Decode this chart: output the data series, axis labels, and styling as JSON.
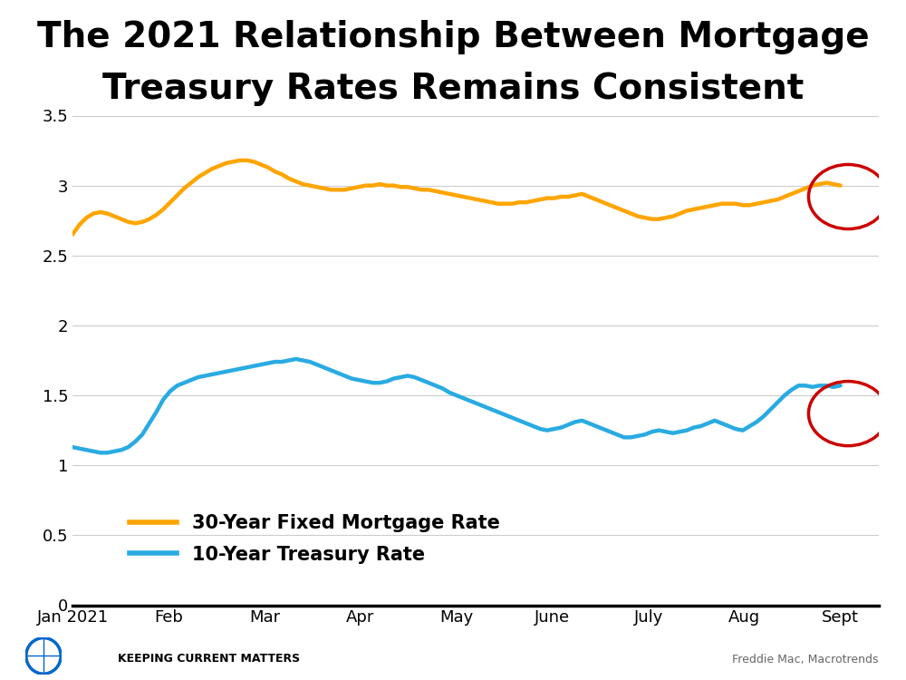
{
  "title_line1": "The 2021 Relationship Between Mortgage",
  "title_line2": "Treasury Rates Remains Consistent",
  "title_fontsize": 28,
  "background_color": "#ffffff",
  "mortgage_color": "#FFA500",
  "treasury_color": "#29ABE2",
  "circle_color": "#CC0000",
  "ylim": [
    0,
    3.5
  ],
  "yticks": [
    0,
    0.5,
    1.0,
    1.5,
    2.0,
    2.5,
    3.0,
    3.5
  ],
  "xtick_labels": [
    "Jan 2021",
    "Feb",
    "Mar",
    "Apr",
    "May",
    "June",
    "July",
    "Aug",
    "Sept",
    ""
  ],
  "legend_mortgage": "30-Year Fixed Mortgage Rate",
  "legend_treasury": "10-Year Treasury Rate",
  "source_left": "KEEPING CURRENT MATTERS",
  "source_right": "Freddie Mac, Macrotrends",
  "mortgage_y": [
    2.65,
    2.72,
    2.77,
    2.8,
    2.81,
    2.8,
    2.78,
    2.76,
    2.74,
    2.73,
    2.74,
    2.76,
    2.79,
    2.83,
    2.88,
    2.93,
    2.98,
    3.02,
    3.06,
    3.09,
    3.12,
    3.14,
    3.16,
    3.17,
    3.18,
    3.18,
    3.17,
    3.15,
    3.13,
    3.1,
    3.08,
    3.05,
    3.03,
    3.01,
    3.0,
    2.99,
    2.98,
    2.97,
    2.97,
    2.97,
    2.98,
    2.99,
    3.0,
    3.0,
    3.01,
    3.0,
    3.0,
    2.99,
    2.99,
    2.98,
    2.97,
    2.97,
    2.96,
    2.95,
    2.94,
    2.93,
    2.92,
    2.91,
    2.9,
    2.89,
    2.88,
    2.87,
    2.87,
    2.87,
    2.88,
    2.88,
    2.89,
    2.9,
    2.91,
    2.91,
    2.92,
    2.92,
    2.93,
    2.94,
    2.92,
    2.9,
    2.88,
    2.86,
    2.84,
    2.82,
    2.8,
    2.78,
    2.77,
    2.76,
    2.76,
    2.77,
    2.78,
    2.8,
    2.82,
    2.83,
    2.84,
    2.85,
    2.86,
    2.87,
    2.87,
    2.87,
    2.86,
    2.86,
    2.87,
    2.88,
    2.89,
    2.9,
    2.92,
    2.94,
    2.96,
    2.98,
    3.0,
    3.01,
    3.02,
    3.01,
    3.0
  ],
  "treasury_y": [
    1.13,
    1.12,
    1.11,
    1.1,
    1.09,
    1.09,
    1.1,
    1.11,
    1.13,
    1.17,
    1.22,
    1.3,
    1.38,
    1.47,
    1.53,
    1.57,
    1.59,
    1.61,
    1.63,
    1.64,
    1.65,
    1.66,
    1.67,
    1.68,
    1.69,
    1.7,
    1.71,
    1.72,
    1.73,
    1.74,
    1.74,
    1.75,
    1.76,
    1.75,
    1.74,
    1.72,
    1.7,
    1.68,
    1.66,
    1.64,
    1.62,
    1.61,
    1.6,
    1.59,
    1.59,
    1.6,
    1.62,
    1.63,
    1.64,
    1.63,
    1.61,
    1.59,
    1.57,
    1.55,
    1.52,
    1.5,
    1.48,
    1.46,
    1.44,
    1.42,
    1.4,
    1.38,
    1.36,
    1.34,
    1.32,
    1.3,
    1.28,
    1.26,
    1.25,
    1.26,
    1.27,
    1.29,
    1.31,
    1.32,
    1.3,
    1.28,
    1.26,
    1.24,
    1.22,
    1.2,
    1.2,
    1.21,
    1.22,
    1.24,
    1.25,
    1.24,
    1.23,
    1.24,
    1.25,
    1.27,
    1.28,
    1.3,
    1.32,
    1.3,
    1.28,
    1.26,
    1.25,
    1.28,
    1.31,
    1.35,
    1.4,
    1.45,
    1.5,
    1.54,
    1.57,
    1.57,
    1.56,
    1.57,
    1.57,
    1.56,
    1.57
  ]
}
